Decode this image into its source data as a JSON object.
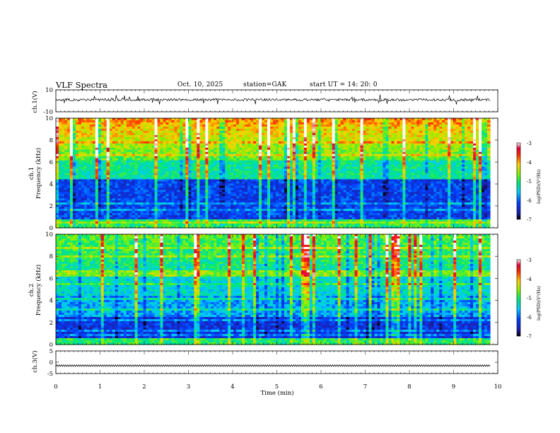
{
  "header": {
    "title": "VLF  Spectra",
    "date": "Oct. 10, 2025",
    "station": "station=GAK",
    "start_ut": "start  UT  =    14: 20: 0"
  },
  "chart_data": [
    {
      "type": "line",
      "panel": "ch1-waveform",
      "ylabel": "ch.1(V)",
      "ylim": [
        -10,
        10
      ],
      "yticks": [
        "10",
        "-10"
      ],
      "xlim": [
        0,
        10
      ]
    },
    {
      "type": "heatmap",
      "panel": "ch1-spectrogram",
      "ylabel": "ch.1\nFrequency  (kHz)",
      "ylim": [
        0,
        10
      ],
      "yticks": [
        "0",
        "2",
        "4",
        "6",
        "8",
        "10"
      ],
      "xlim": [
        0,
        10
      ],
      "colorbar": {
        "label": "log(PSD)(V²/Hz)",
        "ticks": [
          "-3",
          "-4",
          "-5",
          "-6",
          "-7"
        ],
        "range": [
          -7,
          -3
        ]
      }
    },
    {
      "type": "heatmap",
      "panel": "ch2-spectrogram",
      "ylabel": "ch.2\nFrequency  (kHz)",
      "ylim": [
        0,
        10
      ],
      "yticks": [
        "0",
        "2",
        "4",
        "6",
        "8",
        "10"
      ],
      "xlim": [
        0,
        10
      ],
      "colorbar": {
        "label": "log(PSD)(V²/Hz)",
        "ticks": [
          "-3",
          "-4",
          "-5",
          "-6",
          "-7"
        ],
        "range": [
          -7,
          -3
        ]
      }
    },
    {
      "type": "line",
      "panel": "ch3-waveform",
      "ylabel": "ch.3(V)",
      "ylim": [
        -5,
        5
      ],
      "yticks": [
        "5",
        "0",
        "-5"
      ],
      "xlim": [
        0,
        10
      ],
      "xlabel": "Time  (min)",
      "xticks": [
        "0",
        "1",
        "2",
        "3",
        "4",
        "5",
        "6",
        "7",
        "8",
        "9",
        "10"
      ]
    }
  ]
}
